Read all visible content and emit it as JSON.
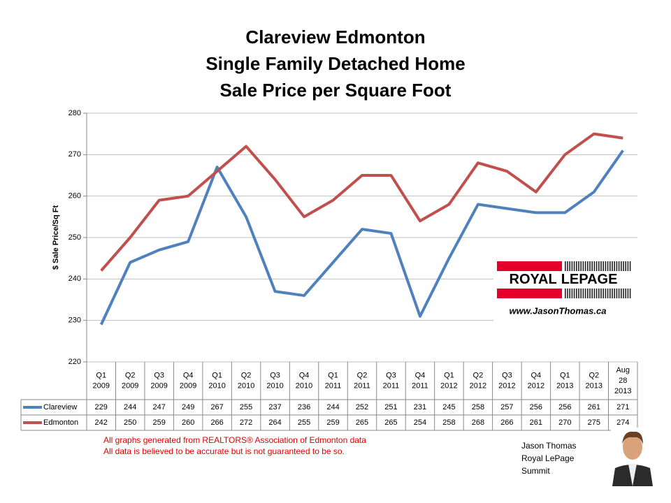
{
  "chart_data": {
    "type": "line",
    "title_lines": [
      "Clareview Edmonton",
      "Single Family Detached Home",
      "Sale Price per Square Foot"
    ],
    "y_label": "$ Sale Price/Sq Ft",
    "categories": [
      "Q1 2009",
      "Q2 2009",
      "Q3 2009",
      "Q4 2009",
      "Q1 2010",
      "Q2 2010",
      "Q3 2010",
      "Q4 2010",
      "Q1 2011",
      "Q2 2011",
      "Q3 2011",
      "Q4 2011",
      "Q1 2012",
      "Q2 2012",
      "Q3 2012",
      "Q4 2012",
      "Q1 2013",
      "Q2 2013",
      "Aug 28 2013"
    ],
    "series": [
      {
        "name": "Clareview",
        "color": "#4f81bd",
        "values": [
          229,
          244,
          247,
          249,
          267,
          255,
          237,
          236,
          244,
          252,
          251,
          231,
          245,
          258,
          257,
          256,
          256,
          261,
          271
        ]
      },
      {
        "name": "Edmonton",
        "color": "#c0504d",
        "values": [
          242,
          250,
          259,
          260,
          266,
          272,
          264,
          255,
          259,
          265,
          265,
          254,
          258,
          268,
          266,
          261,
          270,
          275,
          274
        ]
      }
    ],
    "ylim": [
      220,
      280
    ],
    "yticks": [
      220,
      230,
      240,
      250,
      260,
      270,
      280
    ],
    "grid": true,
    "data_table": true
  },
  "logo": {
    "brand_left": "ROYAL",
    "brand_right": "LEPAGE",
    "url": "www.JasonThomas.ca"
  },
  "notes": [
    "All graphs generated from REALTORS® Association of Edmonton data",
    "All data is believed to be accurate but is not guaranteed to be so."
  ],
  "signature": [
    "Jason Thomas",
    "Royal LePage",
    "Summit"
  ]
}
